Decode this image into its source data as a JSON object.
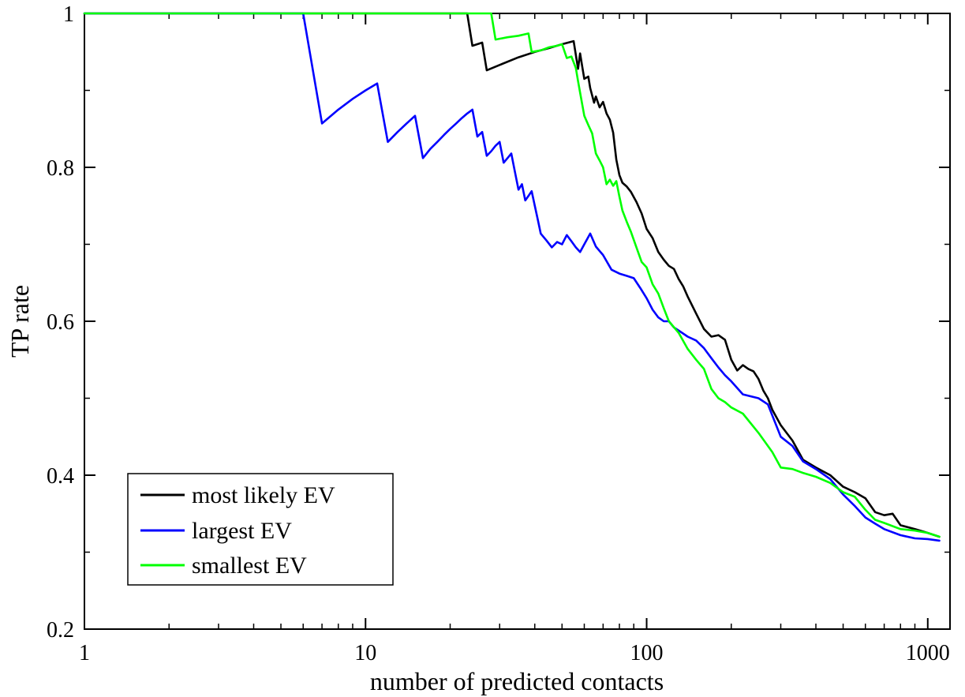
{
  "chart_data": {
    "type": "line",
    "title": "",
    "xlabel": "number of predicted contacts",
    "ylabel": "TP rate",
    "xscale": "log",
    "xlim": [
      1,
      1200
    ],
    "ylim": [
      0.2,
      1.0
    ],
    "xticks": [
      1,
      10,
      100,
      1000
    ],
    "xtick_labels": [
      "1",
      "10",
      "100",
      "1000"
    ],
    "yticks": [
      0.2,
      0.4,
      0.6,
      0.8,
      1.0
    ],
    "ytick_labels": [
      "0.2",
      "0.4",
      "0.6",
      "0.8",
      "1"
    ],
    "grid": false,
    "legend_position": "bottom-left",
    "series": [
      {
        "name": "most likely EV",
        "color": "#000000",
        "points": [
          [
            1,
            1.0
          ],
          [
            23,
            1.0
          ],
          [
            24,
            0.958
          ],
          [
            26,
            0.962
          ],
          [
            27,
            0.926
          ],
          [
            30,
            0.933
          ],
          [
            35,
            0.943
          ],
          [
            40,
            0.95
          ],
          [
            45,
            0.955
          ],
          [
            50,
            0.96
          ],
          [
            55,
            0.964
          ],
          [
            56,
            0.946
          ],
          [
            57,
            0.928
          ],
          [
            58,
            0.948
          ],
          [
            59,
            0.931
          ],
          [
            60,
            0.915
          ],
          [
            62,
            0.918
          ],
          [
            63,
            0.903
          ],
          [
            65,
            0.884
          ],
          [
            66,
            0.892
          ],
          [
            68,
            0.878
          ],
          [
            70,
            0.885
          ],
          [
            72,
            0.87
          ],
          [
            74,
            0.862
          ],
          [
            76,
            0.845
          ],
          [
            78,
            0.81
          ],
          [
            80,
            0.79
          ],
          [
            82,
            0.78
          ],
          [
            85,
            0.775
          ],
          [
            88,
            0.768
          ],
          [
            92,
            0.755
          ],
          [
            96,
            0.74
          ],
          [
            100,
            0.72
          ],
          [
            105,
            0.708
          ],
          [
            110,
            0.69
          ],
          [
            115,
            0.68
          ],
          [
            120,
            0.672
          ],
          [
            125,
            0.668
          ],
          [
            130,
            0.655
          ],
          [
            135,
            0.645
          ],
          [
            140,
            0.632
          ],
          [
            150,
            0.61
          ],
          [
            160,
            0.59
          ],
          [
            170,
            0.58
          ],
          [
            180,
            0.582
          ],
          [
            190,
            0.576
          ],
          [
            200,
            0.55
          ],
          [
            210,
            0.536
          ],
          [
            220,
            0.543
          ],
          [
            230,
            0.538
          ],
          [
            240,
            0.535
          ],
          [
            250,
            0.525
          ],
          [
            260,
            0.51
          ],
          [
            270,
            0.5
          ],
          [
            280,
            0.485
          ],
          [
            300,
            0.465
          ],
          [
            330,
            0.445
          ],
          [
            360,
            0.42
          ],
          [
            400,
            0.41
          ],
          [
            450,
            0.4
          ],
          [
            500,
            0.385
          ],
          [
            550,
            0.378
          ],
          [
            600,
            0.37
          ],
          [
            650,
            0.352
          ],
          [
            700,
            0.348
          ],
          [
            750,
            0.35
          ],
          [
            800,
            0.335
          ],
          [
            900,
            0.33
          ],
          [
            1000,
            0.325
          ],
          [
            1100,
            0.32
          ]
        ]
      },
      {
        "name": "largest EV",
        "color": "#0000ff",
        "points": [
          [
            1,
            1.0
          ],
          [
            6,
            1.0
          ],
          [
            7,
            0.857
          ],
          [
            8,
            0.875
          ],
          [
            9,
            0.889
          ],
          [
            10,
            0.9
          ],
          [
            11,
            0.909
          ],
          [
            12,
            0.833
          ],
          [
            13,
            0.846
          ],
          [
            14,
            0.857
          ],
          [
            15,
            0.867
          ],
          [
            16,
            0.812
          ],
          [
            17,
            0.824
          ],
          [
            18,
            0.833
          ],
          [
            19,
            0.842
          ],
          [
            20,
            0.85
          ],
          [
            21,
            0.857
          ],
          [
            22,
            0.864
          ],
          [
            23,
            0.87
          ],
          [
            24,
            0.875
          ],
          [
            25,
            0.84
          ],
          [
            26,
            0.846
          ],
          [
            27,
            0.815
          ],
          [
            28,
            0.821
          ],
          [
            29,
            0.828
          ],
          [
            30,
            0.833
          ],
          [
            31,
            0.806
          ],
          [
            32,
            0.812
          ],
          [
            33,
            0.818
          ],
          [
            34,
            0.794
          ],
          [
            35,
            0.771
          ],
          [
            36,
            0.778
          ],
          [
            37,
            0.757
          ],
          [
            38,
            0.763
          ],
          [
            39,
            0.769
          ],
          [
            40,
            0.75
          ],
          [
            41,
            0.732
          ],
          [
            42,
            0.714
          ],
          [
            44,
            0.705
          ],
          [
            46,
            0.696
          ],
          [
            48,
            0.703
          ],
          [
            50,
            0.7
          ],
          [
            52,
            0.712
          ],
          [
            54,
            0.704
          ],
          [
            56,
            0.696
          ],
          [
            58,
            0.69
          ],
          [
            60,
            0.7
          ],
          [
            63,
            0.714
          ],
          [
            66,
            0.697
          ],
          [
            70,
            0.686
          ],
          [
            75,
            0.667
          ],
          [
            80,
            0.662
          ],
          [
            85,
            0.659
          ],
          [
            90,
            0.656
          ],
          [
            95,
            0.643
          ],
          [
            100,
            0.63
          ],
          [
            105,
            0.615
          ],
          [
            110,
            0.605
          ],
          [
            115,
            0.6
          ],
          [
            120,
            0.6
          ],
          [
            125,
            0.592
          ],
          [
            130,
            0.588
          ],
          [
            140,
            0.58
          ],
          [
            150,
            0.575
          ],
          [
            160,
            0.565
          ],
          [
            170,
            0.552
          ],
          [
            180,
            0.54
          ],
          [
            190,
            0.53
          ],
          [
            200,
            0.522
          ],
          [
            220,
            0.505
          ],
          [
            250,
            0.5
          ],
          [
            270,
            0.492
          ],
          [
            300,
            0.45
          ],
          [
            330,
            0.438
          ],
          [
            360,
            0.418
          ],
          [
            400,
            0.408
          ],
          [
            450,
            0.395
          ],
          [
            500,
            0.375
          ],
          [
            550,
            0.36
          ],
          [
            600,
            0.345
          ],
          [
            650,
            0.337
          ],
          [
            700,
            0.33
          ],
          [
            800,
            0.322
          ],
          [
            900,
            0.318
          ],
          [
            1000,
            0.317
          ],
          [
            1100,
            0.315
          ]
        ]
      },
      {
        "name": "smallest EV",
        "color": "#00ff00",
        "points": [
          [
            1,
            1.0
          ],
          [
            28,
            1.0
          ],
          [
            29,
            0.966
          ],
          [
            32,
            0.969
          ],
          [
            35,
            0.971
          ],
          [
            38,
            0.974
          ],
          [
            39,
            0.95
          ],
          [
            42,
            0.952
          ],
          [
            45,
            0.956
          ],
          [
            48,
            0.958
          ],
          [
            50,
            0.96
          ],
          [
            52,
            0.942
          ],
          [
            54,
            0.944
          ],
          [
            56,
            0.929
          ],
          [
            57,
            0.912
          ],
          [
            58,
            0.897
          ],
          [
            60,
            0.867
          ],
          [
            62,
            0.855
          ],
          [
            64,
            0.844
          ],
          [
            66,
            0.818
          ],
          [
            68,
            0.809
          ],
          [
            70,
            0.8
          ],
          [
            72,
            0.778
          ],
          [
            74,
            0.784
          ],
          [
            76,
            0.776
          ],
          [
            78,
            0.782
          ],
          [
            80,
            0.762
          ],
          [
            82,
            0.744
          ],
          [
            85,
            0.729
          ],
          [
            88,
            0.716
          ],
          [
            92,
            0.696
          ],
          [
            96,
            0.677
          ],
          [
            100,
            0.67
          ],
          [
            105,
            0.648
          ],
          [
            110,
            0.636
          ],
          [
            115,
            0.617
          ],
          [
            120,
            0.6
          ],
          [
            130,
            0.585
          ],
          [
            140,
            0.564
          ],
          [
            150,
            0.55
          ],
          [
            160,
            0.538
          ],
          [
            170,
            0.512
          ],
          [
            180,
            0.5
          ],
          [
            190,
            0.495
          ],
          [
            200,
            0.488
          ],
          [
            220,
            0.48
          ],
          [
            250,
            0.455
          ],
          [
            280,
            0.43
          ],
          [
            300,
            0.41
          ],
          [
            330,
            0.408
          ],
          [
            360,
            0.403
          ],
          [
            400,
            0.398
          ],
          [
            450,
            0.39
          ],
          [
            500,
            0.378
          ],
          [
            550,
            0.372
          ],
          [
            600,
            0.355
          ],
          [
            650,
            0.342
          ],
          [
            700,
            0.338
          ],
          [
            800,
            0.33
          ],
          [
            900,
            0.328
          ],
          [
            1000,
            0.325
          ],
          [
            1100,
            0.32
          ]
        ]
      }
    ]
  }
}
